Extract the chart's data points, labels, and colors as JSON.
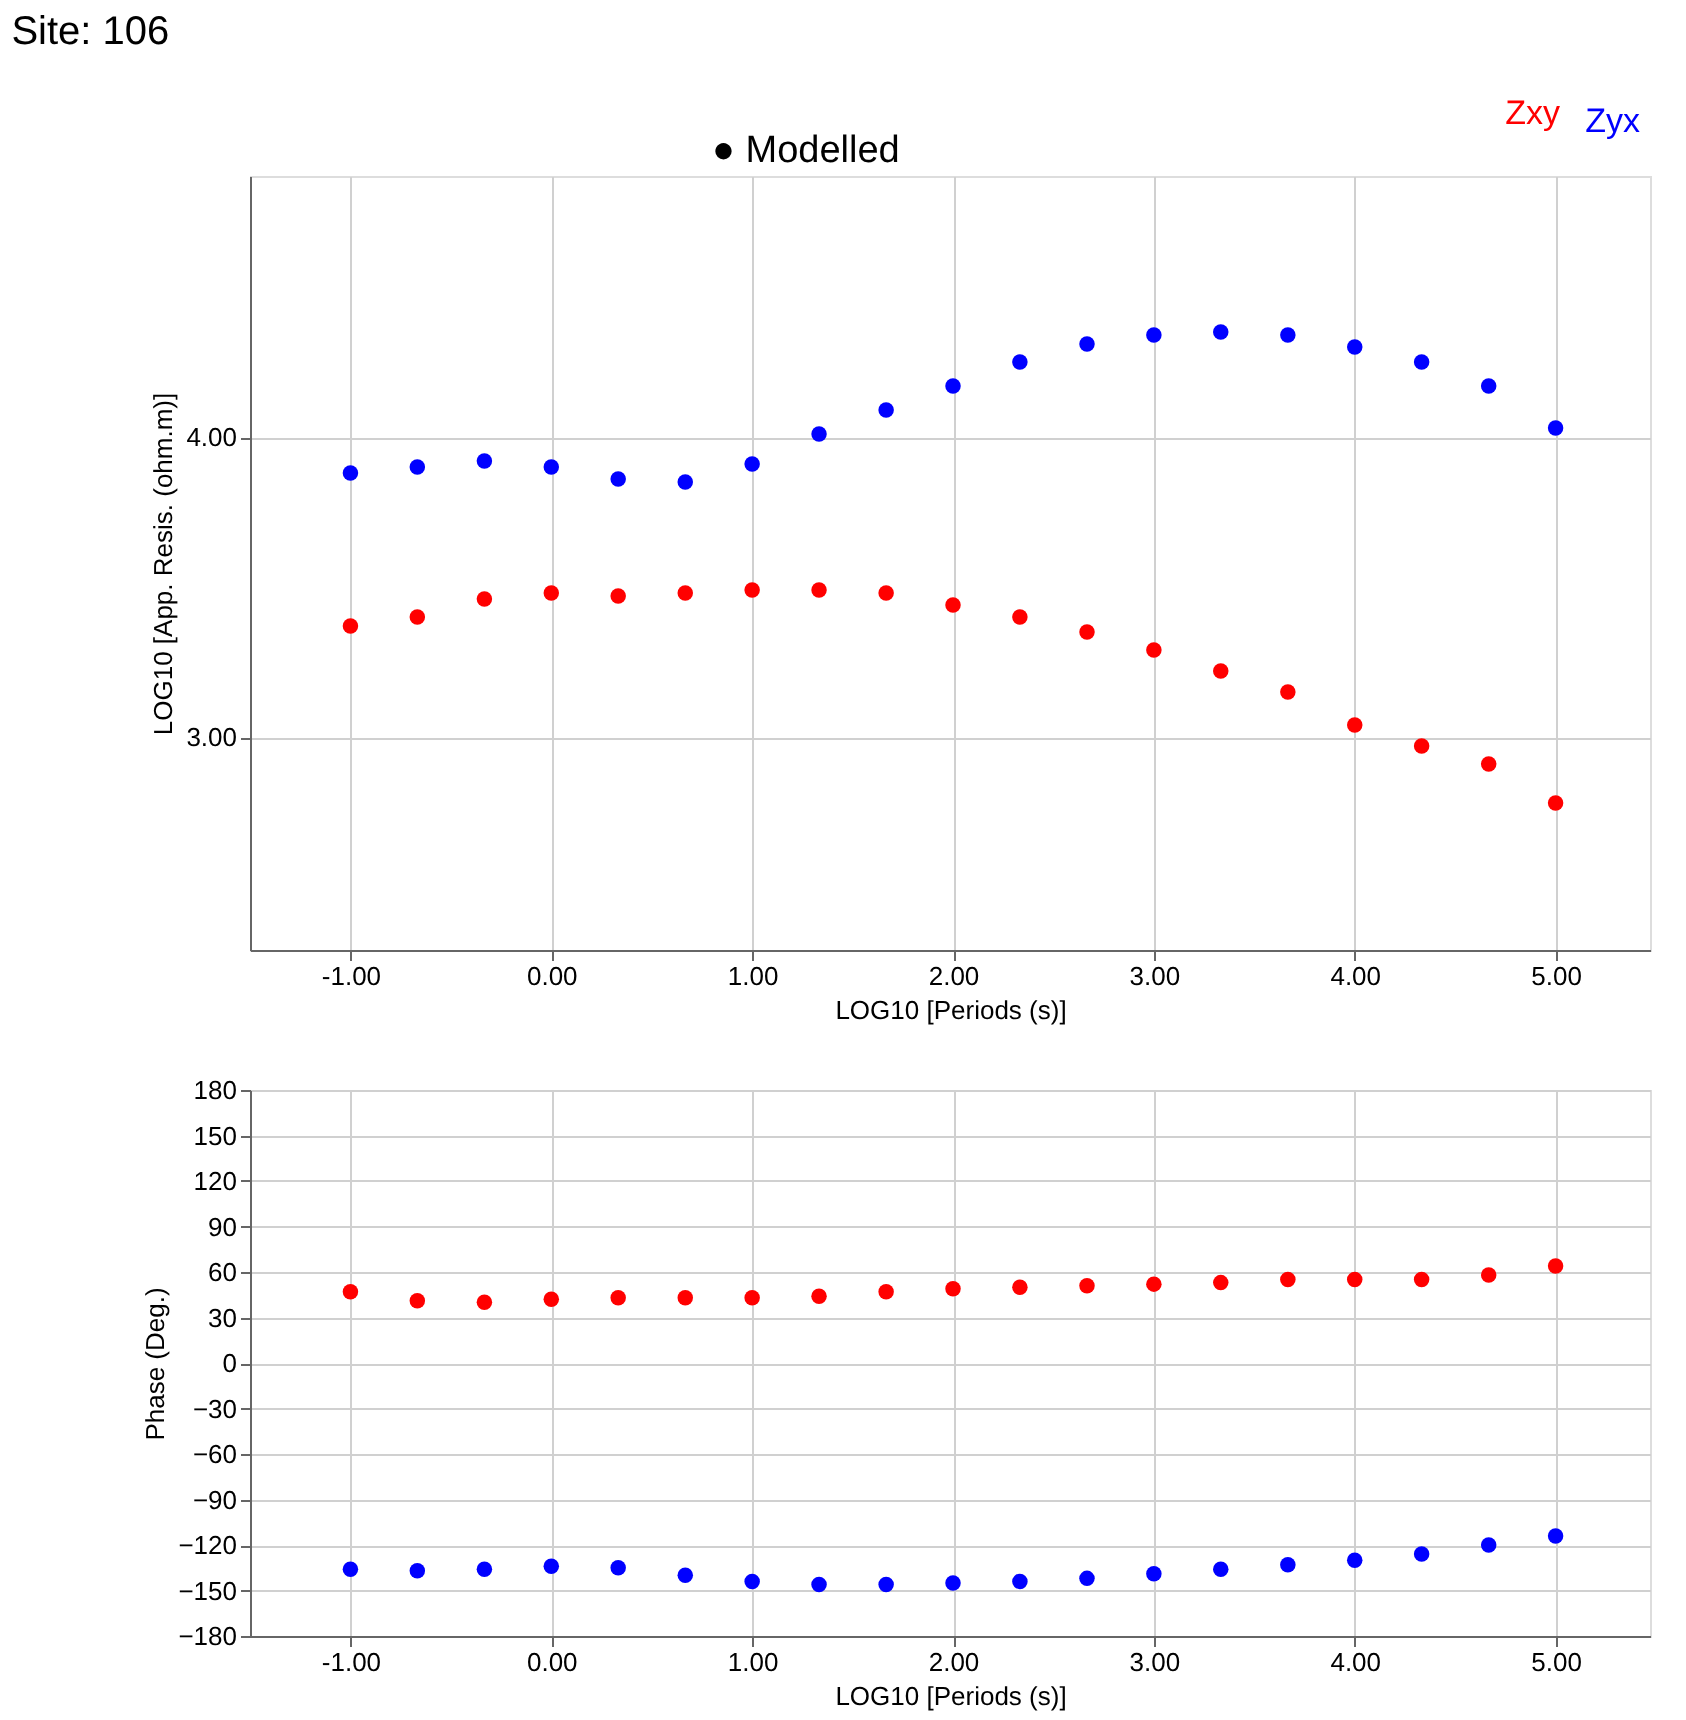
{
  "chart_data": [
    {
      "type": "scatter",
      "title": "Site: 106",
      "legend_title": "● Modelled",
      "xlabel": "LOG10 [Periods (s)]",
      "ylabel": "LOG10 [App. Resis. (ohm.m)]",
      "x": [
        -1,
        -0.667,
        -0.333,
        0,
        0.333,
        0.667,
        1,
        1.333,
        1.667,
        2,
        2.333,
        2.667,
        3,
        3.333,
        3.667,
        4,
        4.333,
        4.667,
        5
      ],
      "series": [
        {
          "name": "Zxy",
          "color": "#ff0000",
          "values": [
            3.37,
            3.4,
            3.46,
            3.48,
            3.47,
            3.48,
            3.49,
            3.49,
            3.48,
            3.44,
            3.4,
            3.35,
            3.29,
            3.22,
            3.15,
            3.04,
            2.97,
            2.91,
            2.78
          ]
        },
        {
          "name": "Zyx",
          "color": "#0000ff",
          "values": [
            3.88,
            3.9,
            3.92,
            3.9,
            3.86,
            3.85,
            3.91,
            4.01,
            4.09,
            4.17,
            4.25,
            4.31,
            4.34,
            4.35,
            4.34,
            4.3,
            4.25,
            4.17,
            4.03
          ]
        }
      ],
      "xlim": [
        -1.5,
        5.47
      ],
      "xticks": [
        {
          "value": -1,
          "label": "-1.00"
        },
        {
          "value": 0,
          "label": "0.00"
        },
        {
          "value": 1,
          "label": "1.00"
        },
        {
          "value": 2,
          "label": "2.00"
        },
        {
          "value": 3,
          "label": "3.00"
        },
        {
          "value": 4,
          "label": "4.00"
        },
        {
          "value": 5,
          "label": "5.00"
        }
      ],
      "ylim": [
        2.29,
        4.87
      ],
      "yticks": [
        {
          "value": 3,
          "label": "3.00"
        },
        {
          "value": 4,
          "label": "4.00"
        }
      ],
      "grid": true,
      "legend": "top right",
      "marker": "circle"
    },
    {
      "type": "scatter",
      "xlabel": "LOG10 [Periods (s)]",
      "ylabel": "Phase (Deg.)",
      "x": [
        -1,
        -0.667,
        -0.333,
        0,
        0.333,
        0.667,
        1,
        1.333,
        1.667,
        2,
        2.333,
        2.667,
        3,
        3.333,
        3.667,
        4,
        4.333,
        4.667,
        5
      ],
      "series": [
        {
          "color": "#ff0000",
          "values": [
            47,
            41,
            40,
            42,
            43,
            43,
            43,
            44,
            47,
            49,
            50,
            51,
            52,
            53,
            55,
            55,
            55,
            58,
            64
          ]
        },
        {
          "color": "#0000ff",
          "values": [
            -136,
            -137,
            -136,
            -134,
            -135,
            -140,
            -144,
            -146,
            -146,
            -145,
            -144,
            -142,
            -139,
            -136,
            -133,
            -130,
            -126,
            -120,
            -114
          ]
        }
      ],
      "xlim": [
        -1.5,
        5.47
      ],
      "xticks": [
        {
          "value": -1,
          "label": "-1.00"
        },
        {
          "value": 0,
          "label": "0.00"
        },
        {
          "value": 1,
          "label": "1.00"
        },
        {
          "value": 2,
          "label": "2.00"
        },
        {
          "value": 3,
          "label": "3.00"
        },
        {
          "value": 4,
          "label": "4.00"
        },
        {
          "value": 5,
          "label": "5.00"
        }
      ],
      "ylim": [
        -180,
        180
      ],
      "yticks": [
        -180,
        -150,
        -120,
        -90,
        -60,
        -30,
        0,
        30,
        60,
        90,
        120,
        150,
        180
      ],
      "grid": true,
      "marker": "circle"
    }
  ]
}
